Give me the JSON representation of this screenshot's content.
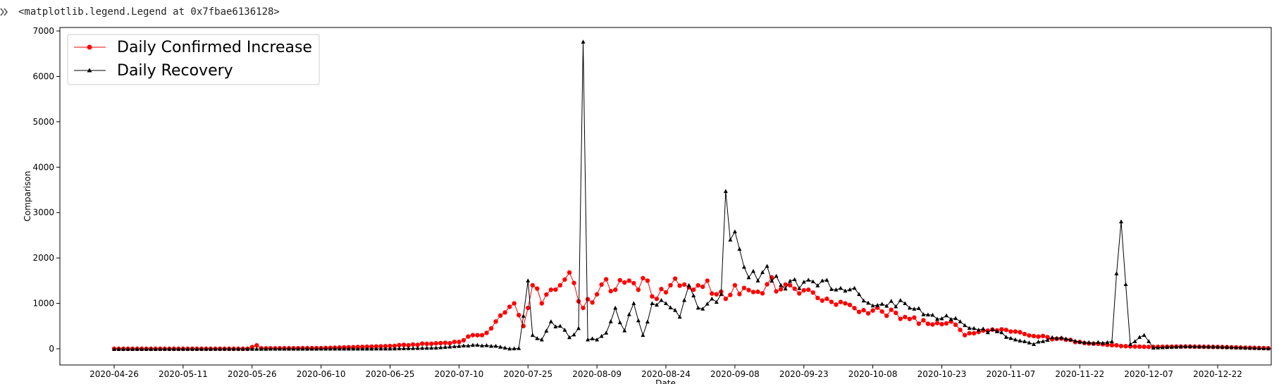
{
  "output_repr": "<matplotlib.legend.Legend at 0x7fbae6136128>",
  "icons": {
    "run": "cell-output-icon"
  },
  "colors": {
    "confirmed": "#ff0000",
    "recovery": "#000000",
    "axes": "#000000"
  },
  "chart_data": {
    "type": "line",
    "title": "",
    "xlabel": "Date",
    "ylabel": "Comparison",
    "x_start": "2020-04-26",
    "x_end": "2021-01-03",
    "x_ticks": [
      "2020-04-26",
      "2020-05-11",
      "2020-05-26",
      "2020-06-10",
      "2020-06-25",
      "2020-07-10",
      "2020-07-25",
      "2020-08-09",
      "2020-08-24",
      "2020-09-08",
      "2020-09-23",
      "2020-10-08",
      "2020-10-23",
      "2020-11-07",
      "2020-11-22",
      "2020-12-07",
      "2020-12-22"
    ],
    "y_ticks": [
      0,
      1000,
      2000,
      3000,
      4000,
      5000,
      6000,
      7000
    ],
    "ylim": [
      -350,
      7080
    ],
    "grid": false,
    "legend_position": "upper-left",
    "series": [
      {
        "name": "Daily Confirmed Increase",
        "color": "#ff0000",
        "marker": "circle",
        "keypoints": [
          [
            "2020-04-26",
            0
          ],
          [
            "2020-05-25",
            0
          ],
          [
            "2020-05-27",
            75
          ],
          [
            "2020-05-28",
            10
          ],
          [
            "2020-06-10",
            15
          ],
          [
            "2020-06-25",
            60
          ],
          [
            "2020-07-05",
            120
          ],
          [
            "2020-07-10",
            150
          ],
          [
            "2020-07-13",
            300
          ],
          [
            "2020-07-16",
            350
          ],
          [
            "2020-07-20",
            800
          ],
          [
            "2020-07-22",
            1000
          ],
          [
            "2020-07-24",
            500
          ],
          [
            "2020-07-25",
            900
          ],
          [
            "2020-07-26",
            1400
          ],
          [
            "2020-07-28",
            1000
          ],
          [
            "2020-07-30",
            1300
          ],
          [
            "2020-08-01",
            1400
          ],
          [
            "2020-08-03",
            1680
          ],
          [
            "2020-08-04",
            1450
          ],
          [
            "2020-08-06",
            900
          ],
          [
            "2020-08-09",
            1200
          ],
          [
            "2020-08-11",
            1530
          ],
          [
            "2020-08-13",
            1300
          ],
          [
            "2020-08-16",
            1500
          ],
          [
            "2020-08-18",
            1300
          ],
          [
            "2020-08-20",
            1500
          ],
          [
            "2020-08-22",
            1100
          ],
          [
            "2020-08-25",
            1400
          ],
          [
            "2020-08-30",
            1300
          ],
          [
            "2020-09-02",
            1500
          ],
          [
            "2020-09-04",
            1200
          ],
          [
            "2020-09-06",
            1100
          ],
          [
            "2020-09-08",
            1400
          ],
          [
            "2020-09-12",
            1250
          ],
          [
            "2020-09-15",
            1420
          ],
          [
            "2020-09-20",
            1400
          ],
          [
            "2020-09-24",
            1300
          ],
          [
            "2020-09-28",
            1100
          ],
          [
            "2020-10-02",
            1000
          ],
          [
            "2020-10-06",
            850
          ],
          [
            "2020-10-10",
            820
          ],
          [
            "2020-10-15",
            700
          ],
          [
            "2020-10-20",
            550
          ],
          [
            "2020-10-25",
            600
          ],
          [
            "2020-10-28",
            300
          ],
          [
            "2020-11-02",
            400
          ],
          [
            "2020-11-07",
            380
          ],
          [
            "2020-11-12",
            280
          ],
          [
            "2020-11-17",
            220
          ],
          [
            "2020-11-22",
            150
          ],
          [
            "2020-11-27",
            100
          ],
          [
            "2020-12-01",
            60
          ],
          [
            "2020-12-07",
            40
          ],
          [
            "2020-12-15",
            50
          ],
          [
            "2020-12-22",
            40
          ],
          [
            "2021-01-03",
            10
          ]
        ]
      },
      {
        "name": "Daily Recovery",
        "color": "#000000",
        "marker": "triangle",
        "keypoints": [
          [
            "2020-04-26",
            -10
          ],
          [
            "2020-06-25",
            0
          ],
          [
            "2020-07-05",
            20
          ],
          [
            "2020-07-13",
            80
          ],
          [
            "2020-07-18",
            60
          ],
          [
            "2020-07-21",
            0
          ],
          [
            "2020-07-23",
            10
          ],
          [
            "2020-07-25",
            1500
          ],
          [
            "2020-07-26",
            300
          ],
          [
            "2020-07-28",
            200
          ],
          [
            "2020-07-30",
            600
          ],
          [
            "2020-08-01",
            500
          ],
          [
            "2020-08-03",
            250
          ],
          [
            "2020-08-05",
            450
          ],
          [
            "2020-08-06",
            6760
          ],
          [
            "2020-08-07",
            200
          ],
          [
            "2020-08-09",
            200
          ],
          [
            "2020-08-11",
            350
          ],
          [
            "2020-08-13",
            900
          ],
          [
            "2020-08-15",
            400
          ],
          [
            "2020-08-17",
            1000
          ],
          [
            "2020-08-19",
            300
          ],
          [
            "2020-08-21",
            1000
          ],
          [
            "2020-08-24",
            1000
          ],
          [
            "2020-08-27",
            700
          ],
          [
            "2020-08-29",
            1400
          ],
          [
            "2020-08-31",
            900
          ],
          [
            "2020-09-03",
            1100
          ],
          [
            "2020-09-05",
            1200
          ],
          [
            "2020-09-06",
            3470
          ],
          [
            "2020-09-07",
            2400
          ],
          [
            "2020-09-08",
            2580
          ],
          [
            "2020-09-10",
            1800
          ],
          [
            "2020-09-13",
            1500
          ],
          [
            "2020-09-15",
            1820
          ],
          [
            "2020-09-18",
            1400
          ],
          [
            "2020-09-25",
            1480
          ],
          [
            "2020-09-30",
            1300
          ],
          [
            "2020-10-05",
            1200
          ],
          [
            "2020-10-08",
            950
          ],
          [
            "2020-10-12",
            1050
          ],
          [
            "2020-10-16",
            900
          ],
          [
            "2020-10-20",
            750
          ],
          [
            "2020-10-25",
            650
          ],
          [
            "2020-10-30",
            450
          ],
          [
            "2020-11-04",
            380
          ],
          [
            "2020-11-08",
            200
          ],
          [
            "2020-11-12",
            100
          ],
          [
            "2020-11-16",
            250
          ],
          [
            "2020-11-20",
            200
          ],
          [
            "2020-11-25",
            120
          ],
          [
            "2020-11-29",
            160
          ],
          [
            "2020-12-01",
            2800
          ],
          [
            "2020-12-03",
            100
          ],
          [
            "2020-12-06",
            300
          ],
          [
            "2020-12-08",
            20
          ],
          [
            "2020-12-15",
            50
          ],
          [
            "2020-12-22",
            40
          ],
          [
            "2021-01-03",
            0
          ]
        ]
      }
    ]
  }
}
